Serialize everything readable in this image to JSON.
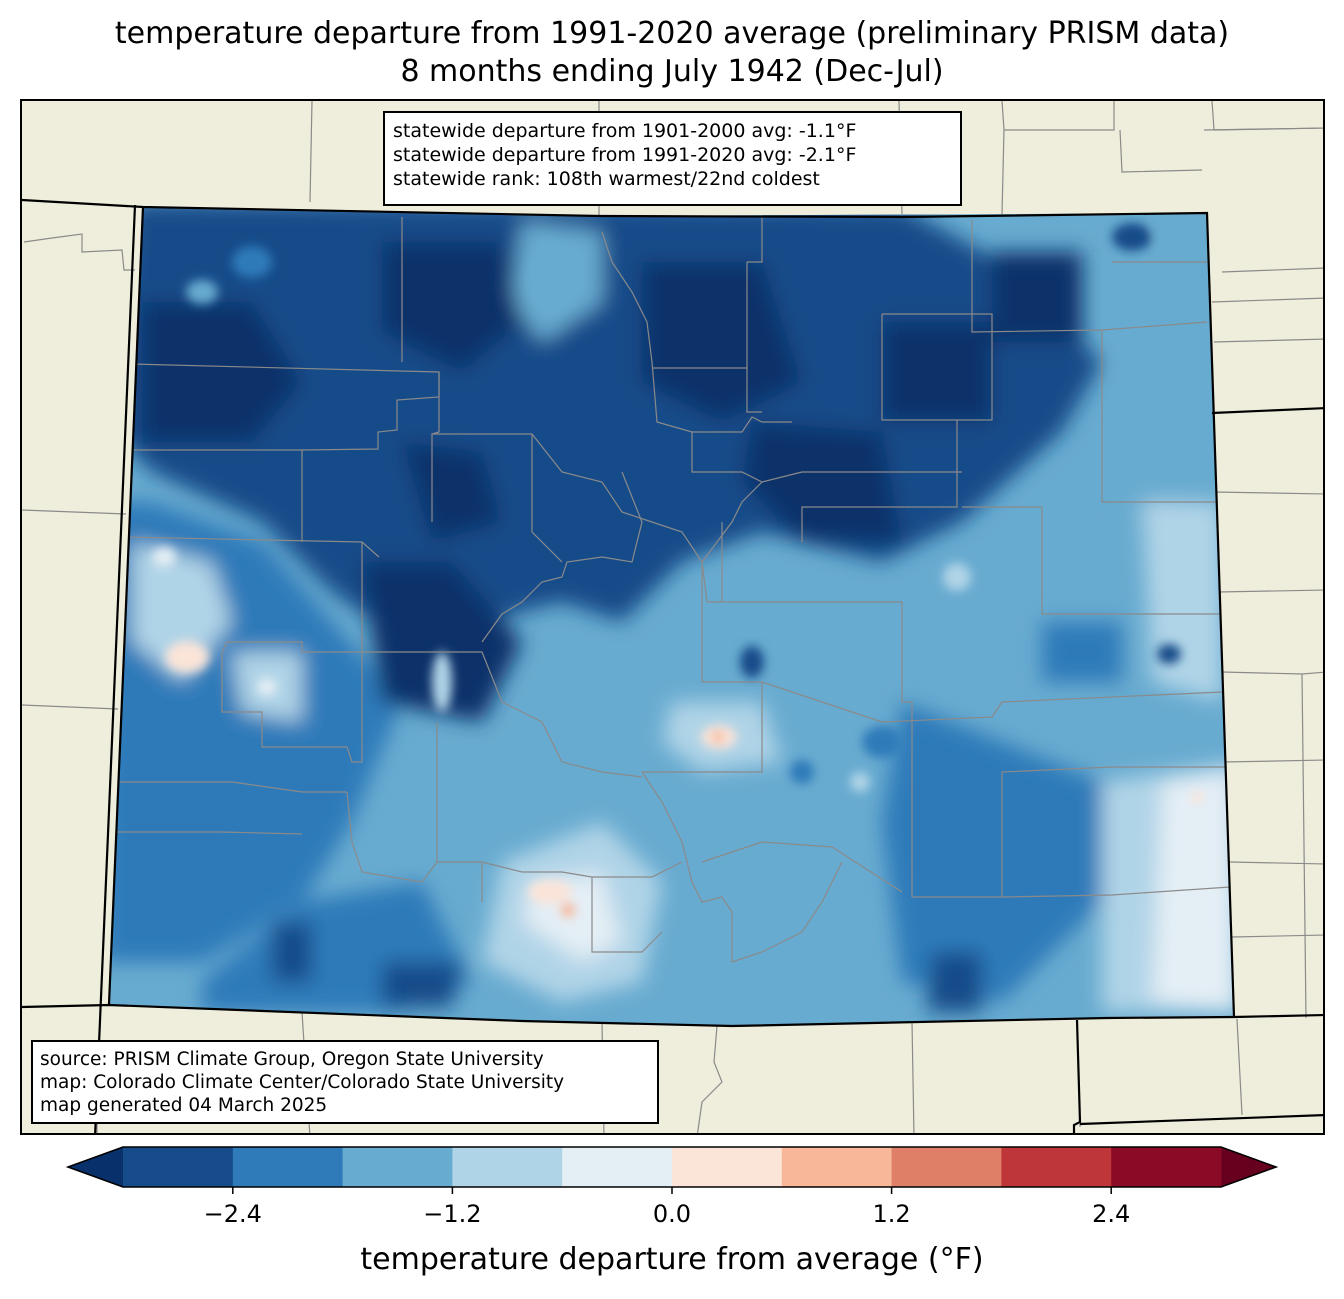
{
  "title": {
    "line1": "temperature departure from 1991-2020 average (preliminary PRISM data)",
    "line2": "8 months ending July 1942 (Dec-Jul)"
  },
  "stats": {
    "line1": "statewide departure from 1901-2000 avg: -1.1°F",
    "line2": "statewide departure from 1991-2020 avg: -2.1°F",
    "line3": "statewide rank: 108th warmest/22nd coldest"
  },
  "credits": {
    "line1": "source: PRISM Climate Group, Oregon State University",
    "line2": "map: Colorado Climate Center/Colorado State University",
    "line3": "map generated 04 March 2025"
  },
  "colorbar": {
    "label": "temperature departure from average (°F)",
    "ticks": [
      "−2.4",
      "−1.2",
      "0.0",
      "1.2",
      "2.4"
    ],
    "tick_values": [
      -2.4,
      -1.2,
      0.0,
      1.2,
      2.4
    ],
    "bin_edges": [
      -3.0,
      -2.4,
      -1.8,
      -1.2,
      -0.6,
      0.0,
      0.6,
      1.2,
      1.8,
      2.4,
      3.0
    ],
    "under_color": "#08306b",
    "over_color": "#67001f",
    "colors": [
      "#154c89",
      "#2f7ab9",
      "#68abd0",
      "#b0d4e7",
      "#e4eef5",
      "#fbe4d8",
      "#f8b798",
      "#e07f67",
      "#bf363a",
      "#8b0b26"
    ]
  },
  "colors": {
    "land_outside": "#efeedc",
    "county_lines": "#8a8a8a",
    "state_lines": "#000000"
  }
}
